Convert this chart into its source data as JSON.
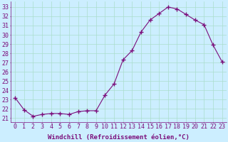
{
  "x": [
    0,
    1,
    2,
    3,
    4,
    5,
    6,
    7,
    8,
    9,
    10,
    11,
    12,
    13,
    14,
    15,
    16,
    17,
    18,
    19,
    20,
    21,
    22,
    23
  ],
  "y": [
    23.2,
    21.9,
    21.2,
    21.4,
    21.5,
    21.5,
    21.4,
    21.7,
    21.8,
    21.8,
    23.5,
    24.7,
    27.3,
    28.3,
    30.3,
    31.6,
    32.3,
    33.0,
    32.8,
    32.2,
    31.6,
    31.1,
    28.9,
    27.1
  ],
  "line_color": "#7b0e7b",
  "marker": "+",
  "marker_size": 4,
  "bg_color": "#cceeff",
  "grid_color": "#aaddcc",
  "xlabel": "Windchill (Refroidissement éolien,°C)",
  "xlabel_fontsize": 6.5,
  "ylabel_ticks": [
    21,
    22,
    23,
    24,
    25,
    26,
    27,
    28,
    29,
    30,
    31,
    32,
    33
  ],
  "ylim": [
    20.6,
    33.6
  ],
  "xlim": [
    -0.5,
    23.5
  ],
  "tick_fontsize": 6.0,
  "figsize": [
    3.2,
    2.0
  ],
  "dpi": 100
}
